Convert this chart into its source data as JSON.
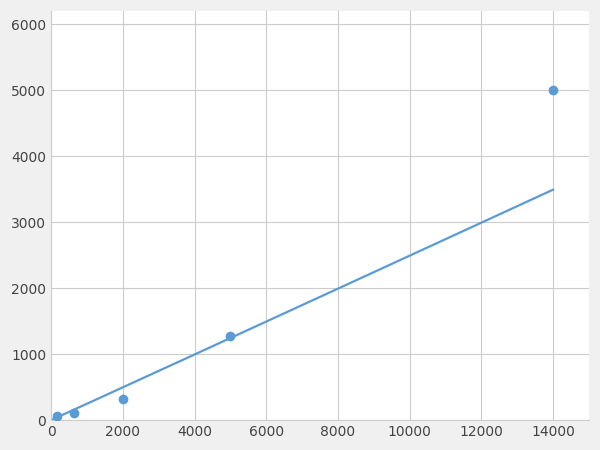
{
  "x": [
    156,
    625,
    2000,
    5000,
    14000
  ],
  "y": [
    62,
    100,
    320,
    1280,
    5000
  ],
  "line_color": "#5b9bd5",
  "marker_color": "#5b9bd5",
  "marker_size": 6,
  "line_width": 1.6,
  "xlim": [
    0,
    15000
  ],
  "ylim": [
    0,
    6200
  ],
  "xticks": [
    0,
    2000,
    4000,
    6000,
    8000,
    10000,
    12000,
    14000
  ],
  "yticks": [
    0,
    1000,
    2000,
    3000,
    4000,
    5000,
    6000
  ],
  "grid_color": "#cccccc",
  "background_color": "#ffffff",
  "figure_bg": "#f0f0f0"
}
